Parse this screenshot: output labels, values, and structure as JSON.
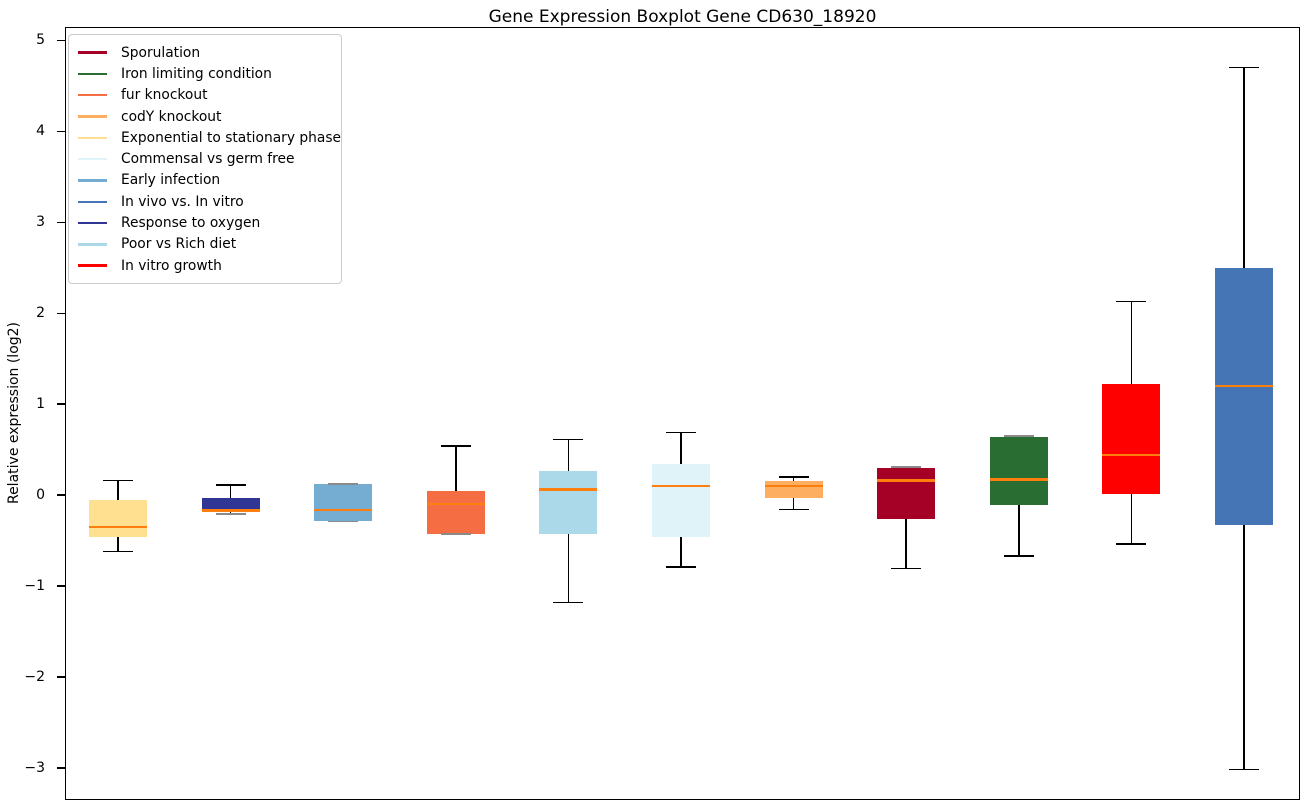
{
  "title": "Gene Expression Boxplot Gene CD630_18920",
  "ylabel": "Relative expression (log2)",
  "chart_data": {
    "type": "boxplot",
    "title": "Gene Expression Boxplot Gene CD630_18920",
    "xlabel": "",
    "ylabel": "Relative expression (log2)",
    "grid": false,
    "legend_position": "upper left",
    "ylim": [
      -3.365,
      5.137
    ],
    "yticks": [
      5,
      4,
      3,
      2,
      1,
      0,
      -1,
      -2,
      -3
    ],
    "ytick_labels": [
      "5",
      "4",
      "3",
      "2",
      "1",
      "0",
      "−1",
      "−2",
      "−3"
    ],
    "median_color": "#ff7f0e",
    "whisker_color": "#000000",
    "series": [
      {
        "name": "Exponential to stationary phase",
        "color": "#fee090",
        "whisker_low": -0.62,
        "q1": -0.46,
        "median": -0.35,
        "q3": -0.05,
        "whisker_high": 0.16
      },
      {
        "name": "Response to oxygen",
        "color": "#313695",
        "whisker_low": -0.21,
        "q1": -0.19,
        "median": -0.17,
        "q3": -0.03,
        "whisker_high": 0.11
      },
      {
        "name": "Early infection",
        "color": "#74add1",
        "whisker_low": -0.29,
        "q1": -0.29,
        "median": -0.16,
        "q3": 0.12,
        "whisker_high": 0.12
      },
      {
        "name": "fur knockout",
        "color": "#f46d43",
        "whisker_low": -0.43,
        "q1": -0.43,
        "median": -0.1,
        "q3": 0.05,
        "whisker_high": 0.54
      },
      {
        "name": "Poor vs Rich diet",
        "color": "#abd9e9",
        "whisker_low": -1.18,
        "q1": -0.43,
        "median": 0.06,
        "q3": 0.26,
        "whisker_high": 0.61
      },
      {
        "name": "Commensal vs germ free",
        "color": "#e0f3f8",
        "whisker_low": -0.79,
        "q1": -0.46,
        "median": 0.1,
        "q3": 0.34,
        "whisker_high": 0.69
      },
      {
        "name": "codY knockout",
        "color": "#fdae61",
        "whisker_low": -0.16,
        "q1": -0.03,
        "median": 0.1,
        "q3": 0.15,
        "whisker_high": 0.2
      },
      {
        "name": "Sporulation",
        "color": "#a50026",
        "whisker_low": -0.81,
        "q1": -0.26,
        "median": 0.16,
        "q3": 0.3,
        "whisker_high": 0.31
      },
      {
        "name": "Iron limiting condition",
        "color": "#2a6d32",
        "whisker_low": -0.67,
        "q1": -0.11,
        "median": 0.17,
        "q3": 0.64,
        "whisker_high": 0.65
      },
      {
        "name": "In vitro growth",
        "color": "#ff0000",
        "whisker_low": -0.54,
        "q1": 0.01,
        "median": 0.44,
        "q3": 1.22,
        "whisker_high": 2.13
      },
      {
        "name": "In vivo vs. In vitro",
        "color": "#4575b4",
        "whisker_low": -3.02,
        "q1": -0.33,
        "median": 1.2,
        "q3": 2.5,
        "whisker_high": 4.7
      }
    ],
    "legend": [
      {
        "label": "Sporulation",
        "color": "#a50026"
      },
      {
        "label": "Iron limiting condition",
        "color": "#2a6d32"
      },
      {
        "label": "fur knockout",
        "color": "#f46d43"
      },
      {
        "label": "codY knockout",
        "color": "#fdae61"
      },
      {
        "label": "Exponential to stationary phase",
        "color": "#fee090"
      },
      {
        "label": "Commensal vs germ free",
        "color": "#e0f3f8"
      },
      {
        "label": "Early infection",
        "color": "#74add1"
      },
      {
        "label": "In vivo vs. In vitro",
        "color": "#4575b4"
      },
      {
        "label": "Response to oxygen",
        "color": "#313695"
      },
      {
        "label": "Poor vs Rich diet",
        "color": "#abd9e9"
      },
      {
        "label": "In vitro growth",
        "color": "#ff0000"
      }
    ]
  }
}
